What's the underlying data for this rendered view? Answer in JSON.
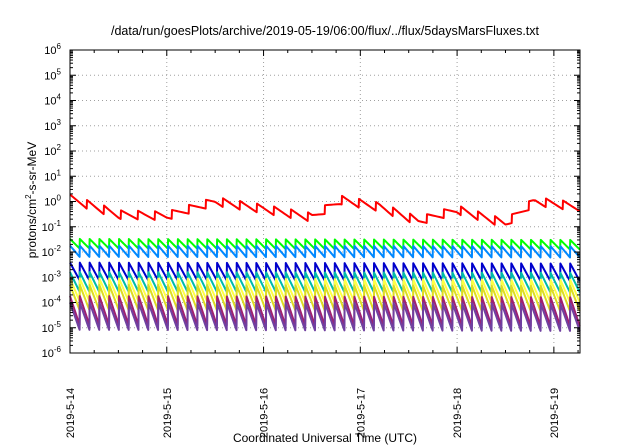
{
  "chart_data": {
    "type": "line",
    "title": "/data/run/goesPlots/archive/2019-05-19/06:00/flux/../flux/5daysMarsFluxes.txt",
    "xlabel": "Coordinated Universal Time (UTC)",
    "ylabel": {
      "prefix": "protons/cm",
      "sup": "2",
      "suffix": "-s-sr-MeV"
    },
    "yscale": "log",
    "ylim_exponent": [
      -6,
      6
    ],
    "y_ticks": [
      {
        "base": "10",
        "exp": "6"
      },
      {
        "base": "10",
        "exp": "5"
      },
      {
        "base": "10",
        "exp": "4"
      },
      {
        "base": "10",
        "exp": "3"
      },
      {
        "base": "10",
        "exp": "2"
      },
      {
        "base": "10",
        "exp": "1"
      },
      {
        "base": "10",
        "exp": "0"
      },
      {
        "base": "10",
        "exp": "-1"
      },
      {
        "base": "10",
        "exp": "-2"
      },
      {
        "base": "10",
        "exp": "-3"
      },
      {
        "base": "10",
        "exp": "-4"
      },
      {
        "base": "10",
        "exp": "-5"
      },
      {
        "base": "10",
        "exp": "-6"
      }
    ],
    "x_ticks": [
      "2019-5-14",
      "2019-5-15",
      "2019-5-16",
      "2019-5-17",
      "2019-5-18",
      "2019-5-19"
    ],
    "xlim_days": [
      0,
      5.27
    ],
    "grid": true,
    "series": [
      {
        "color": "#ff0000",
        "base": [
          [
            0,
            1.9
          ],
          [
            0.5,
            0.45
          ],
          [
            1.0,
            0.4
          ],
          [
            1.5,
            1.5
          ],
          [
            2.0,
            0.75
          ],
          [
            2.5,
            0.35
          ],
          [
            2.8,
            1.7
          ],
          [
            3.2,
            0.9
          ],
          [
            3.6,
            0.25
          ],
          [
            4.0,
            0.7
          ],
          [
            4.5,
            0.2
          ],
          [
            4.8,
            1.5
          ],
          [
            5.27,
            0.9
          ]
        ],
        "cycles": 30,
        "amp": 2.2
      },
      {
        "color": "#00ff00",
        "base": [
          [
            0,
            0.033
          ],
          [
            5.27,
            0.03
          ]
        ],
        "cycles": 52,
        "amp": 2.4
      },
      {
        "color": "#0088ff",
        "base": [
          [
            0,
            0.018
          ],
          [
            5.27,
            0.017
          ]
        ],
        "cycles": 52,
        "amp": 2.8
      },
      {
        "color": "#0000cc",
        "base": [
          [
            0,
            0.0038
          ],
          [
            5.27,
            0.0035
          ]
        ],
        "cycles": 52,
        "amp": 5
      },
      {
        "color": "#00bbaa",
        "base": [
          [
            0,
            0.0016
          ],
          [
            5.27,
            0.0015
          ]
        ],
        "cycles": 52,
        "amp": 6
      },
      {
        "color": "#ffff44",
        "base": [
          [
            0,
            0.0009
          ],
          [
            5.27,
            0.0008
          ]
        ],
        "cycles": 52,
        "amp": 8
      },
      {
        "color": "#dddd22",
        "base": [
          [
            0,
            0.0005
          ],
          [
            5.27,
            0.00045
          ]
        ],
        "cycles": 52,
        "amp": 10
      },
      {
        "color": "#a02070",
        "base": [
          [
            0,
            0.00018
          ],
          [
            5.27,
            0.00016
          ]
        ],
        "cycles": 52,
        "amp": 14
      },
      {
        "color": "#7040a0",
        "base": [
          [
            0,
            0.0001
          ],
          [
            5.27,
            9e-05
          ]
        ],
        "cycles": 52,
        "amp": 12
      }
    ]
  }
}
